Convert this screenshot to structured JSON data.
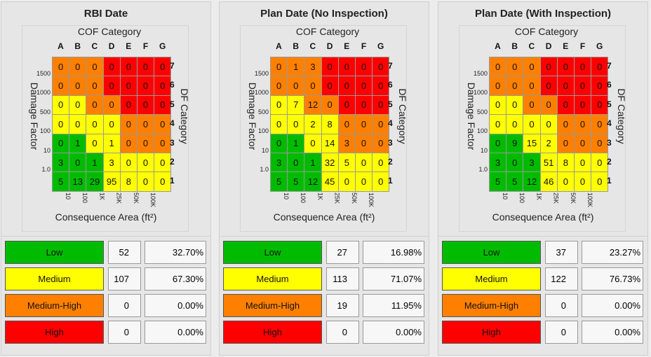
{
  "common": {
    "cof_label": "COF Category",
    "damage_label": "Damage Factor",
    "df_label": "DF Category",
    "area_label": "Consequence Area (ft²)",
    "columns": [
      "A",
      "B",
      "C",
      "D",
      "E",
      "F",
      "G"
    ],
    "rows": [
      "7",
      "6",
      "5",
      "4",
      "3",
      "2",
      "1"
    ],
    "left_ticks": [
      "1500",
      "1000",
      "500",
      "100",
      "10",
      "1.0"
    ],
    "bottom_ticks": [
      "10",
      "100",
      "1K",
      "25K",
      "50K",
      "100K"
    ],
    "colors": {
      "G": "#00bb00",
      "Y": "#ffff00",
      "O": "#ff8000",
      "R": "#ff0000"
    },
    "color_grid": [
      "OOORRRR",
      "OOORRRR",
      "YYOORRR",
      "YYYYOOO",
      "GGYYOOO",
      "GGGYYYY",
      "GGGYYYY"
    ]
  },
  "panels": [
    {
      "title": "RBI Date",
      "values": [
        [
          0,
          0,
          0,
          0,
          0,
          0,
          0
        ],
        [
          0,
          0,
          0,
          0,
          0,
          0,
          0
        ],
        [
          0,
          0,
          0,
          0,
          0,
          0,
          0
        ],
        [
          0,
          0,
          0,
          0,
          0,
          0,
          0
        ],
        [
          0,
          1,
          0,
          1,
          0,
          0,
          0
        ],
        [
          3,
          0,
          1,
          3,
          0,
          0,
          0
        ],
        [
          5,
          13,
          29,
          95,
          8,
          0,
          0
        ]
      ],
      "summary": [
        {
          "label": "Low",
          "count": "52",
          "pct": "32.70%",
          "color": "#00bb00"
        },
        {
          "label": "Medium",
          "count": "107",
          "pct": "67.30%",
          "color": "#ffff00"
        },
        {
          "label": "Medium-High",
          "count": "0",
          "pct": "0.00%",
          "color": "#ff8000"
        },
        {
          "label": "High",
          "count": "0",
          "pct": "0.00%",
          "color": "#ff0000"
        }
      ]
    },
    {
      "title": "Plan Date (No Inspection)",
      "values": [
        [
          0,
          1,
          3,
          0,
          0,
          0,
          0
        ],
        [
          0,
          0,
          0,
          0,
          0,
          0,
          0
        ],
        [
          0,
          7,
          12,
          0,
          0,
          0,
          0
        ],
        [
          0,
          0,
          2,
          8,
          0,
          0,
          0
        ],
        [
          0,
          1,
          0,
          14,
          3,
          0,
          0
        ],
        [
          3,
          0,
          1,
          32,
          5,
          0,
          0
        ],
        [
          5,
          5,
          12,
          45,
          0,
          0,
          0
        ]
      ],
      "summary": [
        {
          "label": "Low",
          "count": "27",
          "pct": "16.98%",
          "color": "#00bb00"
        },
        {
          "label": "Medium",
          "count": "113",
          "pct": "71.07%",
          "color": "#ffff00"
        },
        {
          "label": "Medium-High",
          "count": "19",
          "pct": "11.95%",
          "color": "#ff8000"
        },
        {
          "label": "High",
          "count": "0",
          "pct": "0.00%",
          "color": "#ff0000"
        }
      ]
    },
    {
      "title": "Plan Date (With Inspection)",
      "values": [
        [
          0,
          0,
          0,
          0,
          0,
          0,
          0
        ],
        [
          0,
          0,
          0,
          0,
          0,
          0,
          0
        ],
        [
          0,
          0,
          0,
          0,
          0,
          0,
          0
        ],
        [
          0,
          0,
          0,
          0,
          0,
          0,
          0
        ],
        [
          0,
          9,
          15,
          2,
          0,
          0,
          0
        ],
        [
          3,
          0,
          3,
          51,
          8,
          0,
          0
        ],
        [
          5,
          5,
          12,
          46,
          0,
          0,
          0
        ]
      ],
      "summary": [
        {
          "label": "Low",
          "count": "37",
          "pct": "23.27%",
          "color": "#00bb00"
        },
        {
          "label": "Medium",
          "count": "122",
          "pct": "76.73%",
          "color": "#ffff00"
        },
        {
          "label": "Medium-High",
          "count": "0",
          "pct": "0.00%",
          "color": "#ff8000"
        },
        {
          "label": "High",
          "count": "0",
          "pct": "0.00%",
          "color": "#ff0000"
        }
      ]
    }
  ]
}
